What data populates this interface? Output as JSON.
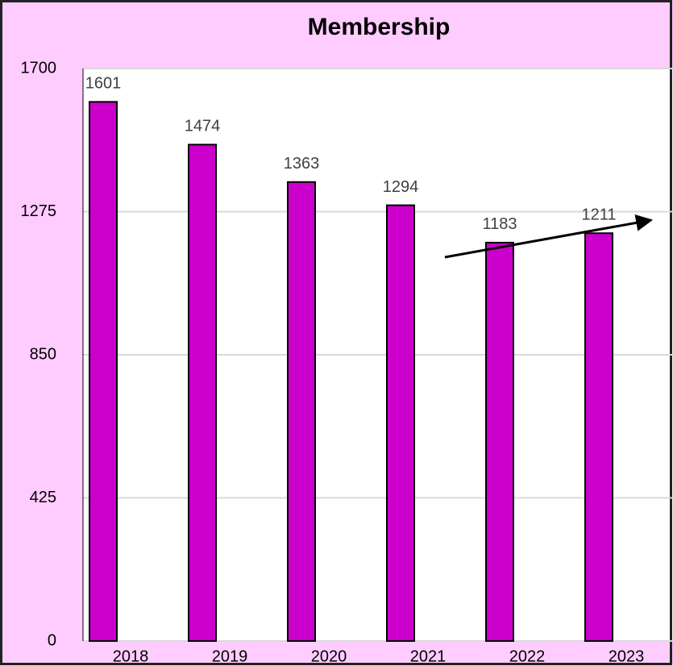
{
  "chart_data": {
    "type": "bar",
    "title": "Membership",
    "categories": [
      "2018",
      "2019",
      "2020",
      "2021",
      "2022",
      "2023"
    ],
    "values": [
      1601,
      1474,
      1363,
      1294,
      1183,
      1211
    ],
    "color": "#cc00cc",
    "ylim": [
      0,
      1700
    ],
    "yticks": [
      0,
      425,
      850,
      1275,
      1700
    ],
    "grid": true
  }
}
